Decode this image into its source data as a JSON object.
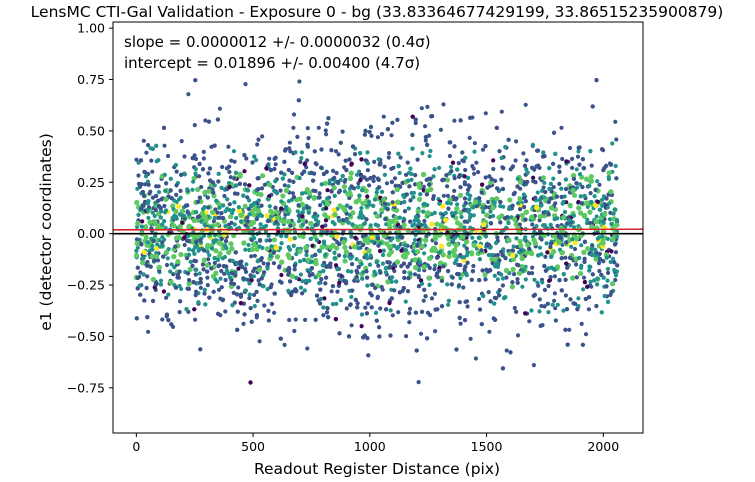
{
  "chart_data": {
    "type": "scatter",
    "title": "LensMC CTI-Gal Validation - Exposure 0 - bg (33.83364677429199, 33.86515235900879)",
    "xlabel": "Readout Register Distance (pix)",
    "ylabel": "e1 (detector coordinates)",
    "xlim": [
      -100,
      2170
    ],
    "ylim": [
      -0.97,
      1.03
    ],
    "xticks": [
      0,
      500,
      1000,
      1500,
      2000
    ],
    "yticks": [
      -0.75,
      -0.5,
      -0.25,
      0.0,
      0.25,
      0.5,
      0.75,
      1.0
    ],
    "xtick_labels": [
      "0",
      "500",
      "1000",
      "1500",
      "2000"
    ],
    "ytick_labels": [
      "−0.75",
      "−0.50",
      "−0.25",
      "0.00",
      "0.25",
      "0.50",
      "0.75",
      "1.00"
    ],
    "grid": false,
    "legend": "none",
    "annotations": [
      "slope = 0.0000012 +/- 0.0000032 (0.4σ)",
      "intercept = 0.01896 +/- 0.00400 (4.7σ)"
    ],
    "fit_line": {
      "slope": 1.2e-06,
      "intercept": 0.01896,
      "color": "#d62728"
    },
    "reference_line": {
      "y": 0.0,
      "color": "#000000"
    },
    "points_distribution": {
      "x_range": [
        0,
        2060
      ],
      "y_center": 0.02,
      "y_spread_approx": [
        -0.85,
        0.88
      ],
      "colormap": "viridis"
    },
    "colors": {
      "viridis": [
        "#440154",
        "#3b528b",
        "#21918c",
        "#5ec962",
        "#fde725"
      ]
    }
  }
}
